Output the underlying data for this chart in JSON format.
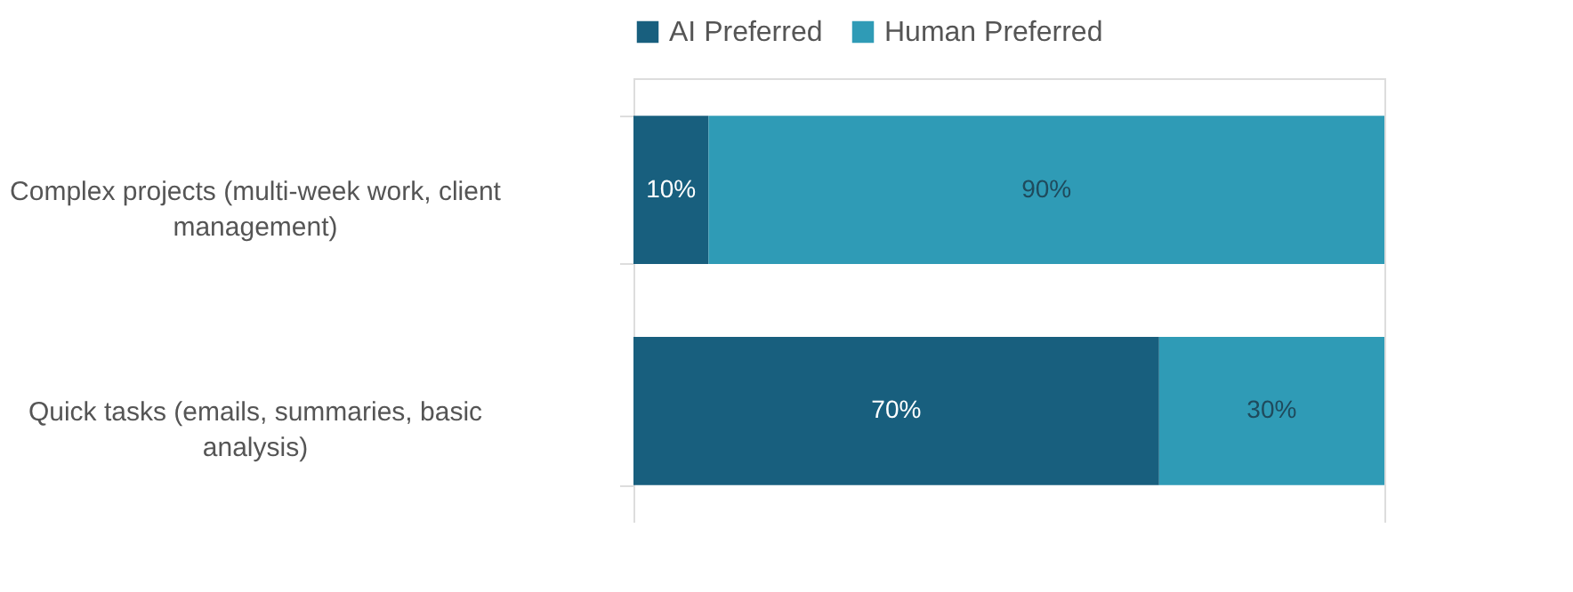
{
  "chart_data": {
    "type": "bar",
    "orientation": "horizontal",
    "stacked": true,
    "legend": "top",
    "categories": [
      "Complex projects (multi-week work, client management)",
      "Quick tasks (emails, summaries, basic analysis)"
    ],
    "series": [
      {
        "name": "AI Preferred",
        "color": "#185f7e",
        "values": [
          10,
          70
        ],
        "value_labels": [
          "10%",
          "70%"
        ]
      },
      {
        "name": "Human Preferred",
        "color": "#2f9bb6",
        "values": [
          90,
          30
        ],
        "value_labels": [
          "90%",
          "30%"
        ]
      }
    ]
  }
}
